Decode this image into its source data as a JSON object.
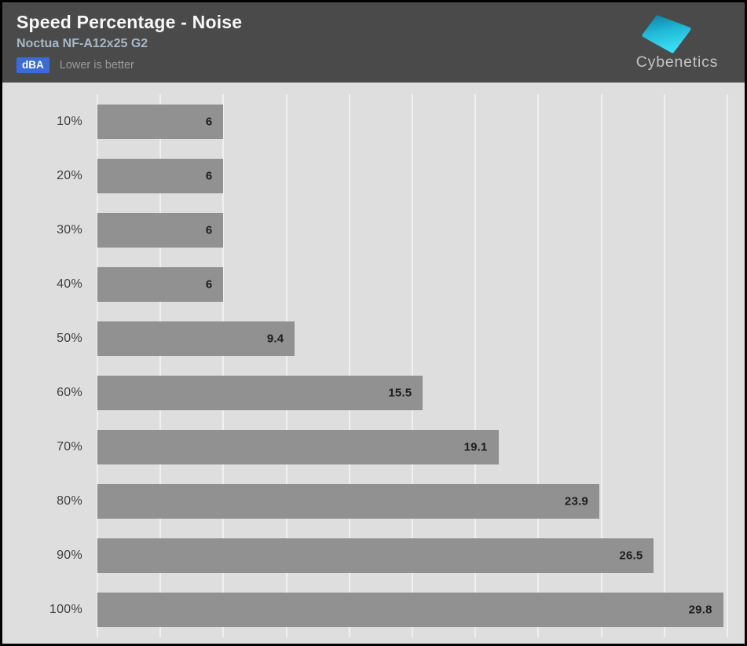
{
  "header": {
    "title": "Speed Percentage - Noise",
    "subtitle": "Noctua NF-A12x25 G2",
    "unit_badge": "dBA",
    "note": "Lower is better",
    "logo_text": "Cybenetics"
  },
  "colors": {
    "header_bg": "#4a4a4a",
    "badge_bg": "#3a6bd8",
    "chart_bg": "#dedede",
    "bar": "#919191",
    "bar_value_text": "#1d1d1d",
    "category_text": "#3f3f3f",
    "subtitle_text": "#a6b8c8",
    "note_text": "#9b9b9b",
    "gridline": "#ffffff",
    "logo_cyan_dark": "#0f85a9",
    "logo_cyan_light": "#38dcf2",
    "logo_text_color": "#c3c3c3"
  },
  "chart_data": {
    "type": "bar",
    "orientation": "horizontal",
    "title": "Speed Percentage - Noise",
    "subtitle": "Noctua NF-A12x25 G2",
    "unit": "dBA",
    "note": "Lower is better",
    "categories": [
      "10%",
      "20%",
      "30%",
      "40%",
      "50%",
      "60%",
      "70%",
      "80%",
      "90%",
      "100%"
    ],
    "values": [
      6,
      6,
      6,
      6,
      9.4,
      15.5,
      19.1,
      23.9,
      26.5,
      29.8
    ],
    "xlabel": "",
    "ylabel": "Speed Percentage",
    "xlim": [
      0,
      30
    ],
    "gridline_interval": 3,
    "grid": true,
    "legend": false,
    "value_label_position": "inside-end"
  }
}
